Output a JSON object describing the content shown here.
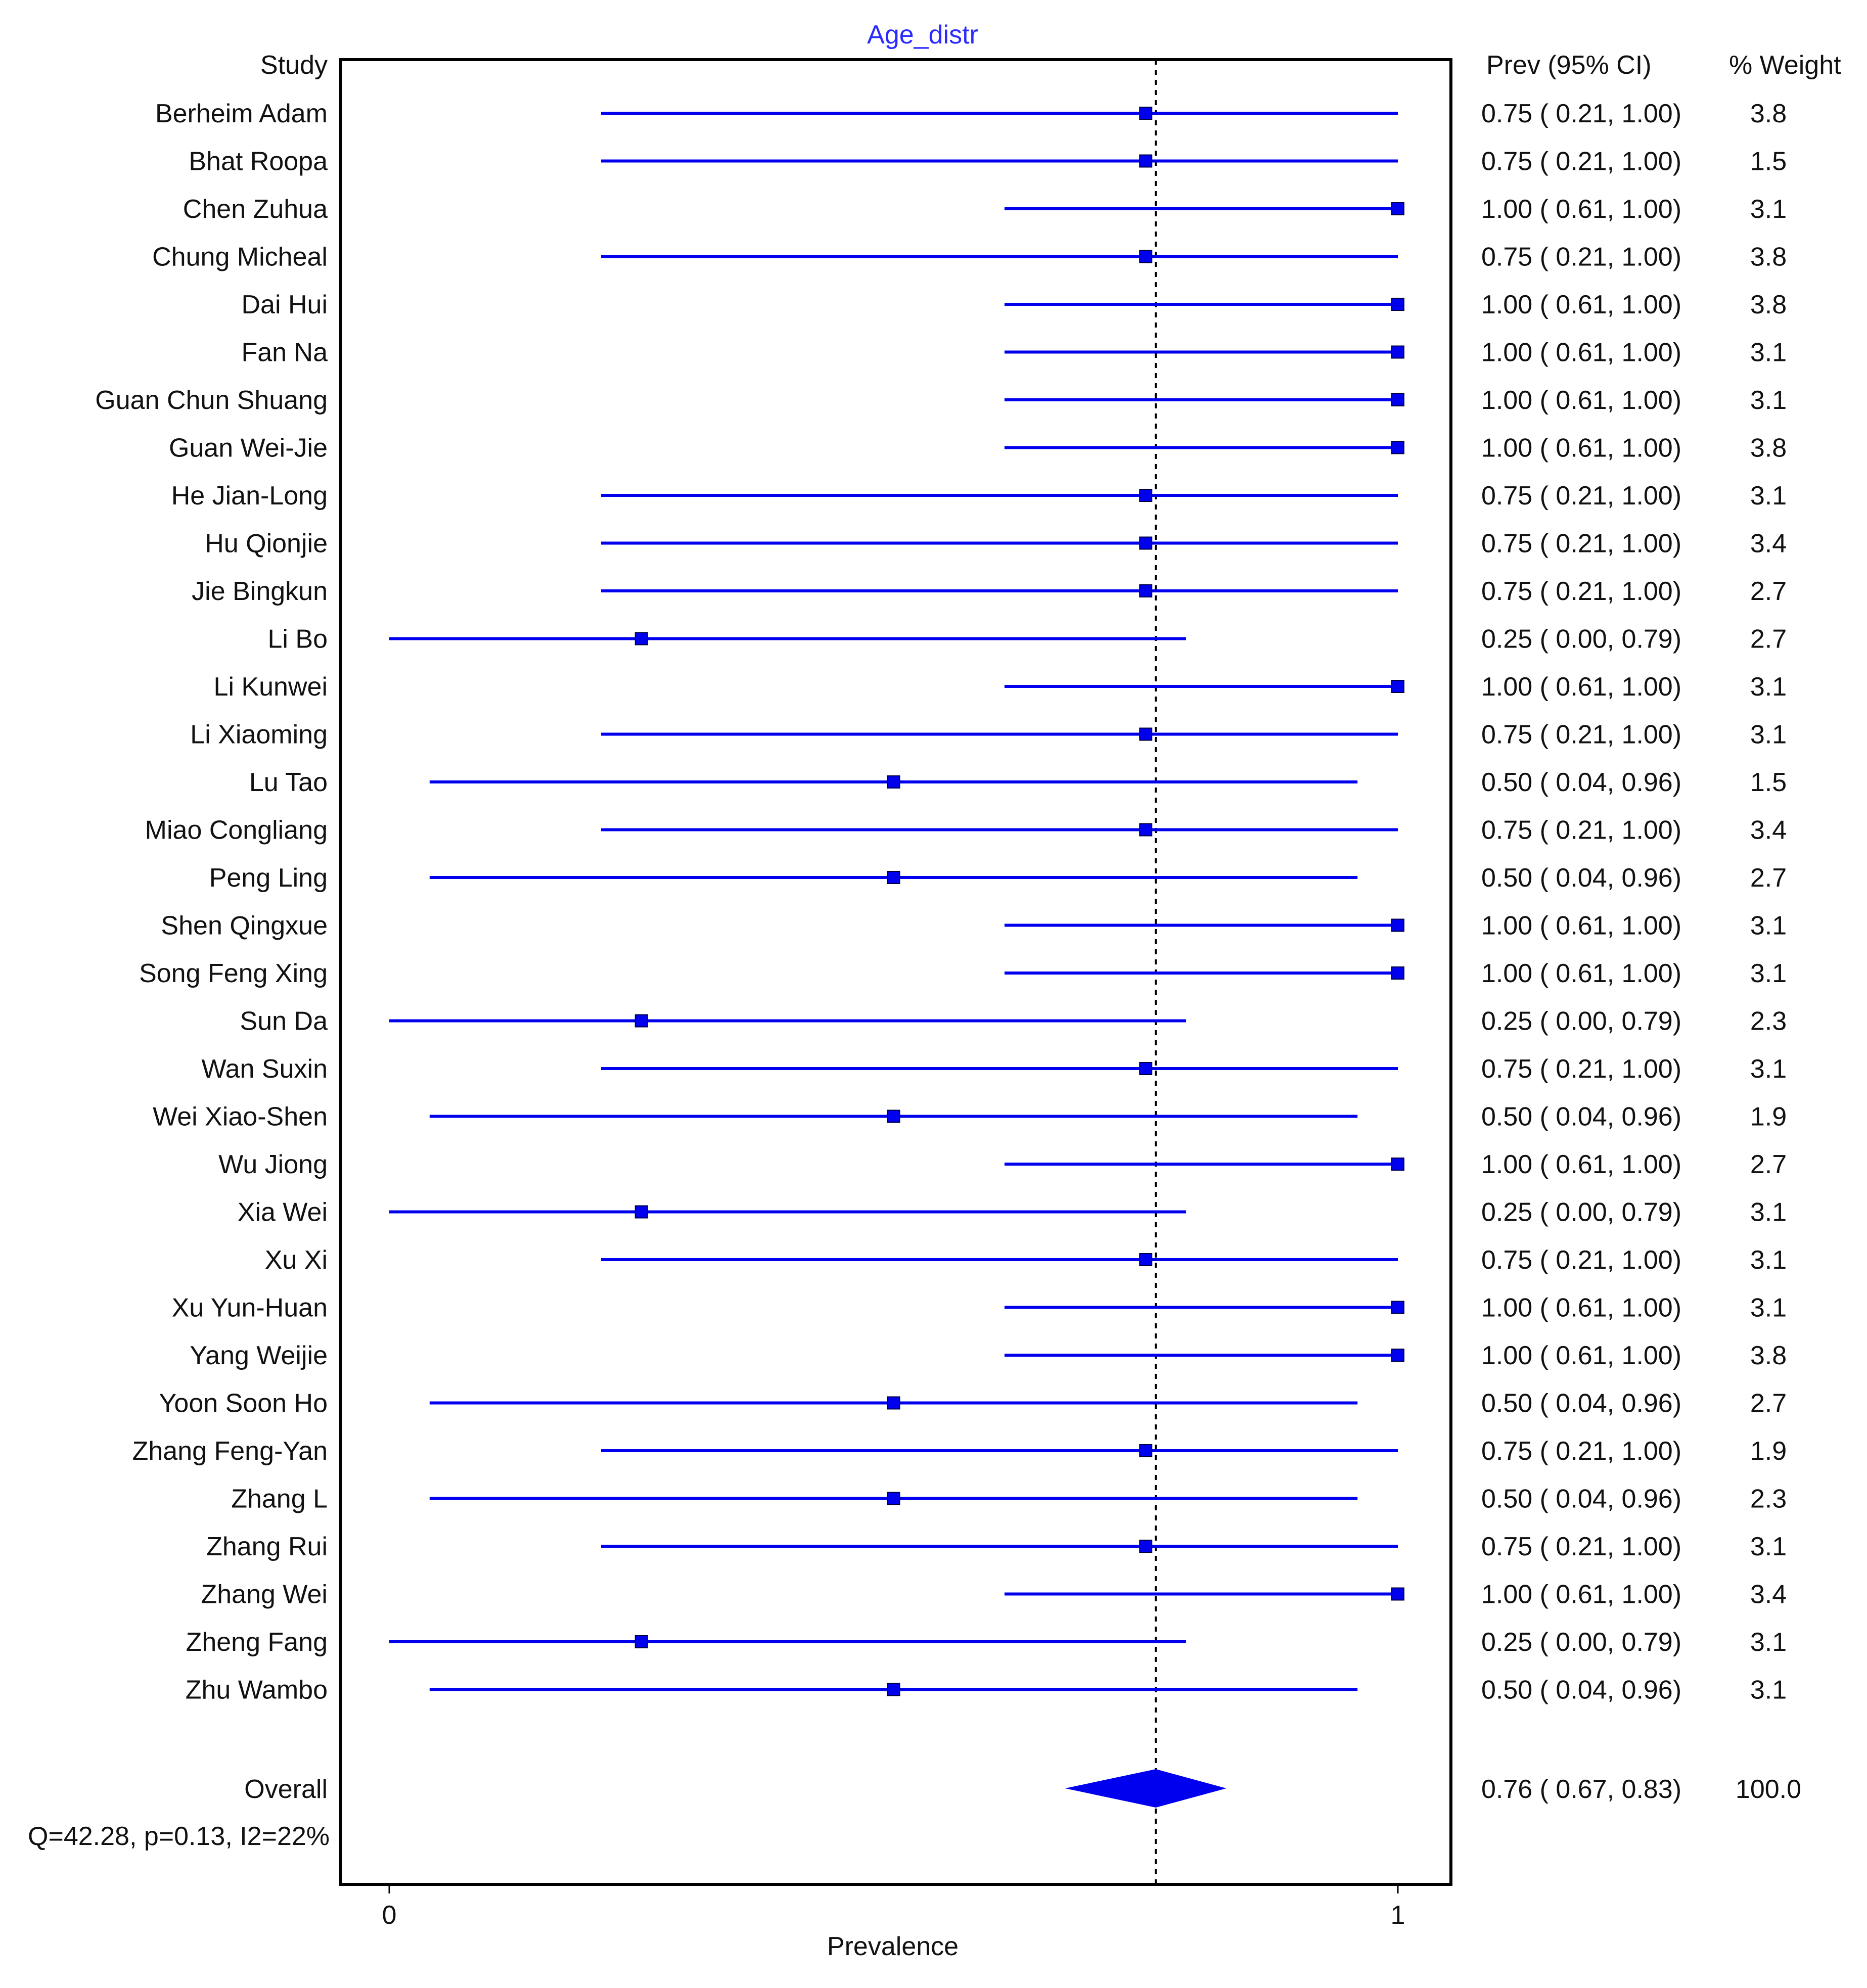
{
  "chart_data": {
    "type": "forest",
    "title": "Age_distr",
    "xlabel": "Prevalence",
    "xlim": [
      0,
      1
    ],
    "x_ticks": [
      "0",
      "1"
    ],
    "reference_line": 0.76,
    "header": {
      "study": "Study",
      "estimate": "Prev (95% CI)",
      "weight": "% Weight"
    },
    "colors": {
      "series": "#0000ee",
      "text": "#111111",
      "title": "#2a2aff",
      "axis": "#000000"
    },
    "studies": [
      {
        "name": "Berheim Adam",
        "prev": 0.75,
        "lo": 0.21,
        "hi": 1.0,
        "ci_text": "0.75 ( 0.21, 1.00)",
        "weight": "3.8"
      },
      {
        "name": "Bhat Roopa",
        "prev": 0.75,
        "lo": 0.21,
        "hi": 1.0,
        "ci_text": "0.75 ( 0.21, 1.00)",
        "weight": "1.5"
      },
      {
        "name": "Chen Zuhua",
        "prev": 1.0,
        "lo": 0.61,
        "hi": 1.0,
        "ci_text": "1.00 ( 0.61, 1.00)",
        "weight": "3.1"
      },
      {
        "name": "Chung Micheal",
        "prev": 0.75,
        "lo": 0.21,
        "hi": 1.0,
        "ci_text": "0.75 ( 0.21, 1.00)",
        "weight": "3.8"
      },
      {
        "name": "Dai Hui",
        "prev": 1.0,
        "lo": 0.61,
        "hi": 1.0,
        "ci_text": "1.00 ( 0.61, 1.00)",
        "weight": "3.8"
      },
      {
        "name": "Fan Na",
        "prev": 1.0,
        "lo": 0.61,
        "hi": 1.0,
        "ci_text": "1.00 ( 0.61, 1.00)",
        "weight": "3.1"
      },
      {
        "name": "Guan Chun Shuang",
        "prev": 1.0,
        "lo": 0.61,
        "hi": 1.0,
        "ci_text": "1.00 ( 0.61, 1.00)",
        "weight": "3.1"
      },
      {
        "name": "Guan Wei-Jie",
        "prev": 1.0,
        "lo": 0.61,
        "hi": 1.0,
        "ci_text": "1.00 ( 0.61, 1.00)",
        "weight": "3.8"
      },
      {
        "name": "He Jian-Long",
        "prev": 0.75,
        "lo": 0.21,
        "hi": 1.0,
        "ci_text": "0.75 ( 0.21, 1.00)",
        "weight": "3.1"
      },
      {
        "name": "Hu Qionjie",
        "prev": 0.75,
        "lo": 0.21,
        "hi": 1.0,
        "ci_text": "0.75 ( 0.21, 1.00)",
        "weight": "3.4"
      },
      {
        "name": "Jie Bingkun",
        "prev": 0.75,
        "lo": 0.21,
        "hi": 1.0,
        "ci_text": "0.75 ( 0.21, 1.00)",
        "weight": "2.7"
      },
      {
        "name": "Li Bo",
        "prev": 0.25,
        "lo": 0.0,
        "hi": 0.79,
        "ci_text": "0.25 ( 0.00, 0.79)",
        "weight": "2.7"
      },
      {
        "name": "Li Kunwei",
        "prev": 1.0,
        "lo": 0.61,
        "hi": 1.0,
        "ci_text": "1.00 ( 0.61, 1.00)",
        "weight": "3.1"
      },
      {
        "name": "Li Xiaoming",
        "prev": 0.75,
        "lo": 0.21,
        "hi": 1.0,
        "ci_text": "0.75 ( 0.21, 1.00)",
        "weight": "3.1"
      },
      {
        "name": "Lu Tao",
        "prev": 0.5,
        "lo": 0.04,
        "hi": 0.96,
        "ci_text": "0.50 ( 0.04, 0.96)",
        "weight": "1.5"
      },
      {
        "name": "Miao Congliang",
        "prev": 0.75,
        "lo": 0.21,
        "hi": 1.0,
        "ci_text": "0.75 ( 0.21, 1.00)",
        "weight": "3.4"
      },
      {
        "name": "Peng Ling",
        "prev": 0.5,
        "lo": 0.04,
        "hi": 0.96,
        "ci_text": "0.50 ( 0.04, 0.96)",
        "weight": "2.7"
      },
      {
        "name": "Shen Qingxue",
        "prev": 1.0,
        "lo": 0.61,
        "hi": 1.0,
        "ci_text": "1.00 ( 0.61, 1.00)",
        "weight": "3.1"
      },
      {
        "name": "Song Feng Xing",
        "prev": 1.0,
        "lo": 0.61,
        "hi": 1.0,
        "ci_text": "1.00 ( 0.61, 1.00)",
        "weight": "3.1"
      },
      {
        "name": "Sun Da",
        "prev": 0.25,
        "lo": 0.0,
        "hi": 0.79,
        "ci_text": "0.25 ( 0.00, 0.79)",
        "weight": "2.3"
      },
      {
        "name": "Wan Suxin",
        "prev": 0.75,
        "lo": 0.21,
        "hi": 1.0,
        "ci_text": "0.75 ( 0.21, 1.00)",
        "weight": "3.1"
      },
      {
        "name": "Wei Xiao-Shen",
        "prev": 0.5,
        "lo": 0.04,
        "hi": 0.96,
        "ci_text": "0.50 ( 0.04, 0.96)",
        "weight": "1.9"
      },
      {
        "name": "Wu Jiong",
        "prev": 1.0,
        "lo": 0.61,
        "hi": 1.0,
        "ci_text": "1.00 ( 0.61, 1.00)",
        "weight": "2.7"
      },
      {
        "name": "Xia Wei",
        "prev": 0.25,
        "lo": 0.0,
        "hi": 0.79,
        "ci_text": "0.25 ( 0.00, 0.79)",
        "weight": "3.1"
      },
      {
        "name": "Xu Xi",
        "prev": 0.75,
        "lo": 0.21,
        "hi": 1.0,
        "ci_text": "0.75 ( 0.21, 1.00)",
        "weight": "3.1"
      },
      {
        "name": "Xu Yun-Huan",
        "prev": 1.0,
        "lo": 0.61,
        "hi": 1.0,
        "ci_text": "1.00 ( 0.61, 1.00)",
        "weight": "3.1"
      },
      {
        "name": "Yang Weijie",
        "prev": 1.0,
        "lo": 0.61,
        "hi": 1.0,
        "ci_text": "1.00 ( 0.61, 1.00)",
        "weight": "3.8"
      },
      {
        "name": "Yoon Soon Ho",
        "prev": 0.5,
        "lo": 0.04,
        "hi": 0.96,
        "ci_text": "0.50 ( 0.04, 0.96)",
        "weight": "2.7"
      },
      {
        "name": "Zhang Feng-Yan",
        "prev": 0.75,
        "lo": 0.21,
        "hi": 1.0,
        "ci_text": "0.75 ( 0.21, 1.00)",
        "weight": "1.9"
      },
      {
        "name": "Zhang L",
        "prev": 0.5,
        "lo": 0.04,
        "hi": 0.96,
        "ci_text": "0.50 ( 0.04, 0.96)",
        "weight": "2.3"
      },
      {
        "name": "Zhang Rui",
        "prev": 0.75,
        "lo": 0.21,
        "hi": 1.0,
        "ci_text": "0.75 ( 0.21, 1.00)",
        "weight": "3.1"
      },
      {
        "name": "Zhang Wei",
        "prev": 1.0,
        "lo": 0.61,
        "hi": 1.0,
        "ci_text": "1.00 ( 0.61, 1.00)",
        "weight": "3.4"
      },
      {
        "name": "Zheng Fang",
        "prev": 0.25,
        "lo": 0.0,
        "hi": 0.79,
        "ci_text": "0.25 ( 0.00, 0.79)",
        "weight": "3.1"
      },
      {
        "name": "Zhu Wambo",
        "prev": 0.5,
        "lo": 0.04,
        "hi": 0.96,
        "ci_text": "0.50 ( 0.04, 0.96)",
        "weight": "3.1"
      }
    ],
    "overall": {
      "name": "Overall",
      "prev": 0.76,
      "lo": 0.67,
      "hi": 0.83,
      "ci_text": "0.76 ( 0.67, 0.83)",
      "weight": "100.0"
    },
    "heterogeneity": "Q=42.28, p=0.13, I2=22%"
  }
}
